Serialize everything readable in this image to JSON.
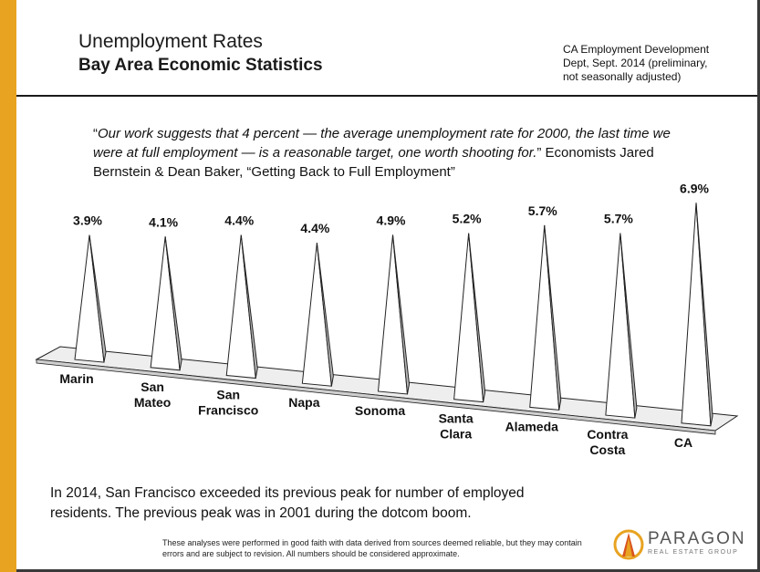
{
  "header": {
    "title_line1": "Unemployment Rates",
    "title_line2": "Bay Area Economic Statistics",
    "source_lines": [
      "CA Employment Development",
      "Dept, Sept. 2014 (preliminary,",
      "not seasonally adjusted)"
    ]
  },
  "quote": {
    "italic_text": "Our work suggests that 4 percent — the average unemployment rate for 2000, the last time we were at full employment — is a reasonable target, one worth shooting for.",
    "attribution": " Economists Jared Bernstein & Dean Baker, “Getting Back to Full Employment”"
  },
  "chart_data": {
    "type": "bar",
    "title": "",
    "xlabel": "",
    "ylabel": "",
    "ylim": [
      0,
      7
    ],
    "categories": [
      "Marin",
      "San Mateo",
      "San Francisco",
      "Napa",
      "Sonoma",
      "Santa Clara",
      "Alameda",
      "Contra Costa",
      "CA"
    ],
    "category_lines": [
      [
        "Marin"
      ],
      [
        "San",
        "Mateo"
      ],
      [
        "San",
        "Francisco"
      ],
      [
        "Napa"
      ],
      [
        "Sonoma"
      ],
      [
        "Santa",
        "Clara"
      ],
      [
        "Alameda"
      ],
      [
        "Contra",
        "Costa"
      ],
      [
        "CA"
      ]
    ],
    "values": [
      3.9,
      4.1,
      4.4,
      4.4,
      4.9,
      5.2,
      5.7,
      5.7,
      6.9
    ],
    "value_labels": [
      "3.9%",
      "4.1%",
      "4.4%",
      "4.4%",
      "4.9%",
      "5.2%",
      "5.7%",
      "5.7%",
      "6.9%"
    ],
    "grid": false,
    "legend": "none",
    "style": "3d-pyramid"
  },
  "footnote": "In 2014, San Francisco exceeded its previous peak for number of employed residents. The previous peak was in 2001 during the dotcom boom.",
  "disclaimer": "These analyses were performed in good faith with data derived from sources deemed reliable, but they may contain errors and are subject to revision.  All numbers should be considered approximate.",
  "logo": {
    "name": "PARAGON",
    "tagline": "REAL ESTATE GROUP",
    "colors": {
      "gold": "#e8a321",
      "orange": "#d9531e",
      "gray": "#555555"
    }
  },
  "colors": {
    "accent_bar": "#e8a321",
    "pyramid_light": "#ffffff",
    "pyramid_dark": "#b8b8b8",
    "floor": "#eeeeee"
  }
}
